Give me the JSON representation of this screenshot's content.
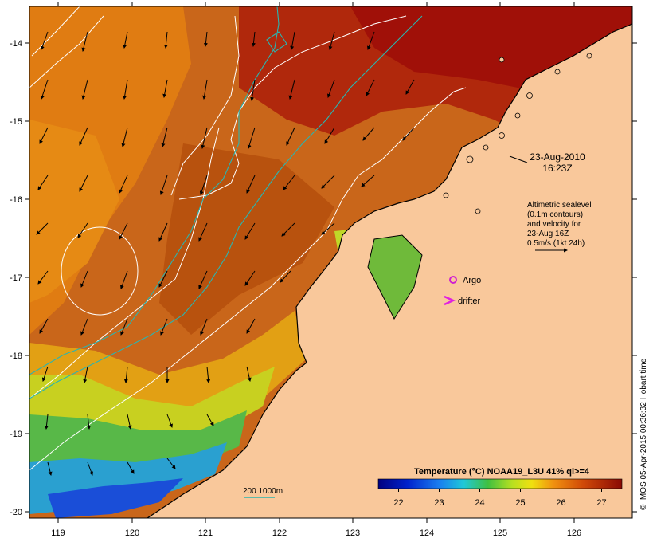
{
  "map": {
    "timestamp_date": "23-Aug-2010",
    "timestamp_time": "16:23Z",
    "altimetry_note": [
      "Altimetric sealevel",
      "(0.1m contours)",
      "and velocity for",
      "23-Aug 16Z",
      "0.5m/s (1kt 24h)"
    ],
    "argo_label": "Argo",
    "drifter_label": "drifter",
    "depth_label": "200  1000m",
    "credit": "© IMOS 05-Apr-2015 00:36:32 Hobart time",
    "lon_ticks": [
      "119",
      "120",
      "121",
      "122",
      "123",
      "124",
      "125",
      "126"
    ],
    "lat_ticks": [
      "-14",
      "-15",
      "-16",
      "-17",
      "-18",
      "-19",
      "-20"
    ],
    "colorbar": {
      "title": "Temperature (°C) NOAA19_L3U 41% ql>=4",
      "ticks": [
        "22",
        "23",
        "24",
        "25",
        "26",
        "27"
      ],
      "range": [
        21.5,
        27.5
      ]
    },
    "colors": {
      "land": "#f9c89b",
      "coastline": "#000000",
      "contour_sealevel": "#ffffff",
      "contour_bathymetry": "#2ab5b0",
      "argo": "#d020d0",
      "drifter": "#e020e0",
      "sst_hot": "#a01008",
      "sst_warm": "#d86a10",
      "sst_mid": "#9acd32",
      "sst_cool": "#1a66d8"
    }
  }
}
